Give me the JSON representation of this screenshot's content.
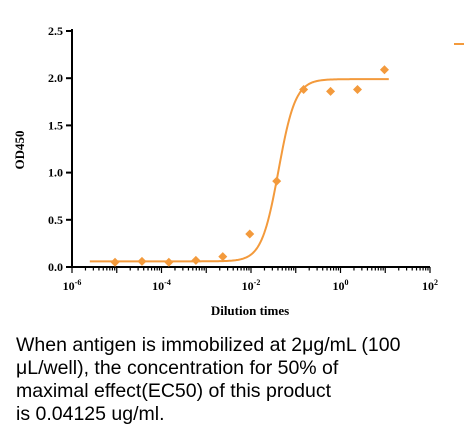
{
  "chart_data": {
    "type": "scatter",
    "xlabel": "Dilution times",
    "ylabel": "OD450",
    "x_scale": "log",
    "xlim": [
      1e-06,
      100
    ],
    "ylim": [
      0,
      2.5
    ],
    "yticks": [
      "0.0",
      "0.5",
      "1.0",
      "1.5",
      "2.0",
      "2.5"
    ],
    "yticks_values": [
      0,
      0.5,
      1.0,
      1.5,
      2.0,
      2.5
    ],
    "xticks": [
      {
        "base": "10",
        "exp": "-6",
        "value": 1e-06
      },
      {
        "base": "10",
        "exp": "-4",
        "value": 0.0001
      },
      {
        "base": "10",
        "exp": "-2",
        "value": 0.01
      },
      {
        "base": "10",
        "exp": "0",
        "value": 1
      },
      {
        "base": "10",
        "exp": "2",
        "value": 100
      }
    ],
    "series": [
      {
        "color": "#f39a3c",
        "marker": "diamond",
        "x": [
          9.16e-06,
          3.66e-05,
          0.000146,
          0.000586,
          0.00234,
          0.00938,
          0.0375,
          0.15,
          0.6,
          2.4,
          9.6
        ],
        "y": [
          0.05,
          0.06,
          0.05,
          0.07,
          0.11,
          0.35,
          0.91,
          1.88,
          1.86,
          1.88,
          2.09
        ],
        "fit": {
          "bottom": 0.06,
          "top": 1.99,
          "ec50": 0.04125,
          "hill": 2.3
        }
      }
    ],
    "legend_position": "top-right (partially cropped)"
  },
  "caption": "When antigen is immobilized at 2μg/mL (100\nμL/well), the concentration for 50% of\nmaximal effect(EC50) of this product\nis 0.04125 ug/ml."
}
